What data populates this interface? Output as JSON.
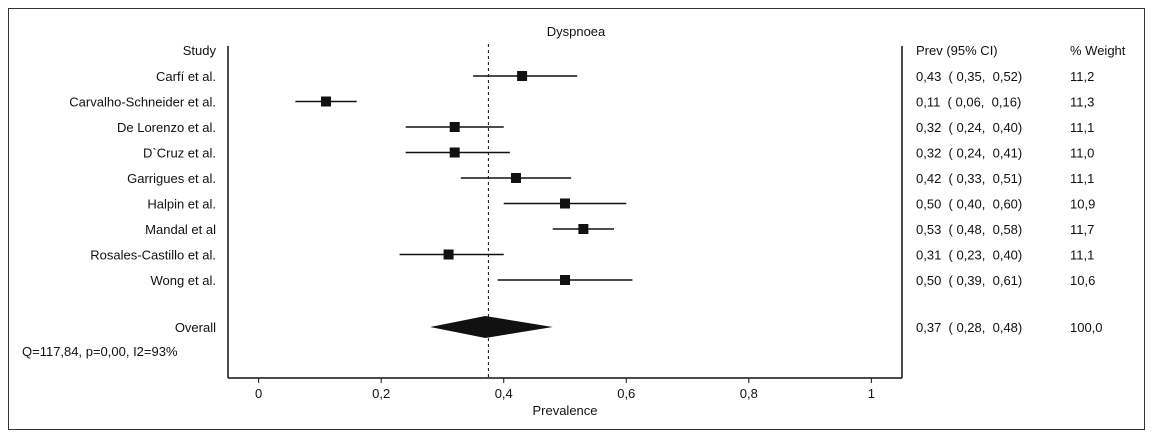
{
  "chart_data": {
    "type": "forest",
    "title": "Dyspnoea",
    "xlabel": "Prevalence",
    "xlim": [
      -0.05,
      1.05
    ],
    "xticks": [
      0,
      0.2,
      0.4,
      0.6,
      0.8,
      1
    ],
    "xtick_labels": [
      "0",
      "0,2",
      "0,4",
      "0,6",
      "0,8",
      "1"
    ],
    "reference_line": 0.375,
    "headers": {
      "study": "Study",
      "prev": "Prev (95% CI)",
      "weight": "% Weight"
    },
    "studies": [
      {
        "name": "Carfí et al.",
        "est": 0.43,
        "lo": 0.35,
        "hi": 0.52,
        "ci_text": "0,43  ( 0,35,  0,52)",
        "weight": "11,2"
      },
      {
        "name": "Carvalho-Schneider et al.",
        "est": 0.11,
        "lo": 0.06,
        "hi": 0.16,
        "ci_text": "0,11  ( 0,06,  0,16)",
        "weight": "11,3"
      },
      {
        "name": "De Lorenzo et al.",
        "est": 0.32,
        "lo": 0.24,
        "hi": 0.4,
        "ci_text": "0,32  ( 0,24,  0,40)",
        "weight": "11,1"
      },
      {
        "name": "D`Cruz et al.",
        "est": 0.32,
        "lo": 0.24,
        "hi": 0.41,
        "ci_text": "0,32  ( 0,24,  0,41)",
        "weight": "11,0"
      },
      {
        "name": "Garrigues et al.",
        "est": 0.42,
        "lo": 0.33,
        "hi": 0.51,
        "ci_text": "0,42  ( 0,33,  0,51)",
        "weight": "11,1"
      },
      {
        "name": "Halpin et al.",
        "est": 0.5,
        "lo": 0.4,
        "hi": 0.6,
        "ci_text": "0,50  ( 0,40,  0,60)",
        "weight": "10,9"
      },
      {
        "name": "Mandal et al",
        "est": 0.53,
        "lo": 0.48,
        "hi": 0.58,
        "ci_text": "0,53  ( 0,48,  0,58)",
        "weight": "11,7"
      },
      {
        "name": "Rosales-Castillo et al.",
        "est": 0.31,
        "lo": 0.23,
        "hi": 0.4,
        "ci_text": "0,31  ( 0,23,  0,40)",
        "weight": "11,1"
      },
      {
        "name": "Wong et al.",
        "est": 0.5,
        "lo": 0.39,
        "hi": 0.61,
        "ci_text": "0,50  ( 0,39,  0,61)",
        "weight": "10,6"
      }
    ],
    "overall": {
      "name": "Overall",
      "est": 0.37,
      "lo": 0.28,
      "hi": 0.48,
      "ci_text": "0,37  ( 0,28,  0,48)",
      "weight": "100,0"
    },
    "heterogeneity": "Q=117,84, p=0,00, I2=93%"
  }
}
